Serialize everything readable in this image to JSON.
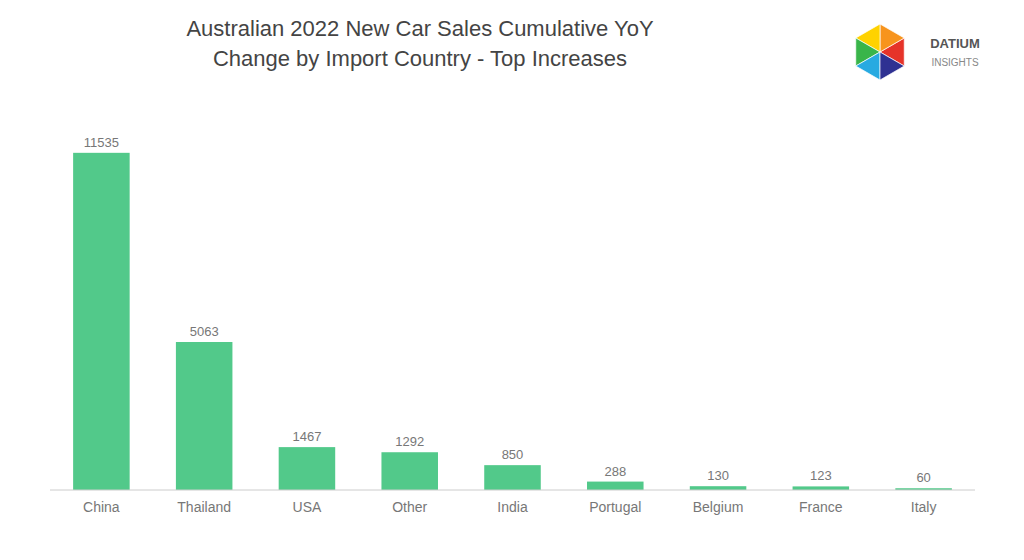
{
  "chart_data": {
    "type": "bar",
    "title": "Australian 2022 New Car Sales Cumulative YoY\nChange by Import Country - Top Increases",
    "categories": [
      "China",
      "Thailand",
      "USA",
      "Other",
      "India",
      "Portugal",
      "Belgium",
      "France",
      "Italy"
    ],
    "values": [
      11535,
      5063,
      1467,
      1292,
      850,
      288,
      130,
      123,
      60
    ],
    "color": "#52c98a",
    "ylim": [
      0,
      13000
    ],
    "grid": false,
    "data_labels": true,
    "tick_labels": "x",
    "annotations": [
      "DATIUM",
      "INSIGHTS"
    ]
  }
}
